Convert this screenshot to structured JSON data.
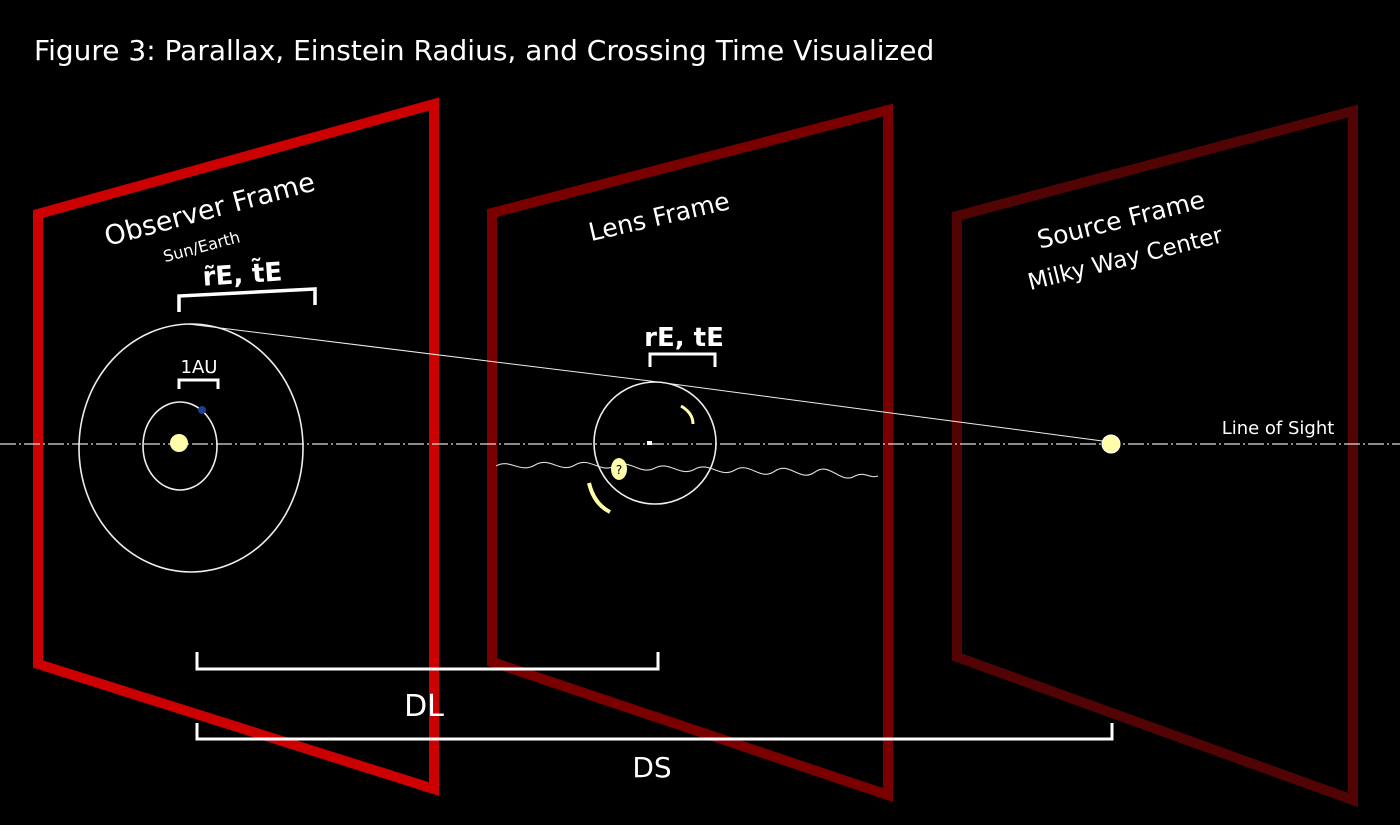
{
  "title": "Figure 3: Parallax, Einstein Radius, and Crossing Time Visualized",
  "observer_frame": {
    "title": "Observer Frame",
    "subtitle": "Sun/Earth",
    "projected_label": "r̃E, t̃E",
    "au_label": "1AU"
  },
  "lens_frame": {
    "title": "Lens Frame",
    "einstein_label": "rE, tE",
    "unknown_lens_mark": "?"
  },
  "source_frame": {
    "title": "Source Frame",
    "subtitle": "Milky Way Center"
  },
  "line_of_sight_label": "Line of Sight",
  "distances": {
    "lens_distance_label": "DL",
    "source_distance_label": "DS"
  },
  "colors": {
    "observer_frame": "#cc0000",
    "lens_frame": "#7a0000",
    "source_frame": "#520404",
    "star": "#fffcaa",
    "earth": "#1f3f8f"
  }
}
